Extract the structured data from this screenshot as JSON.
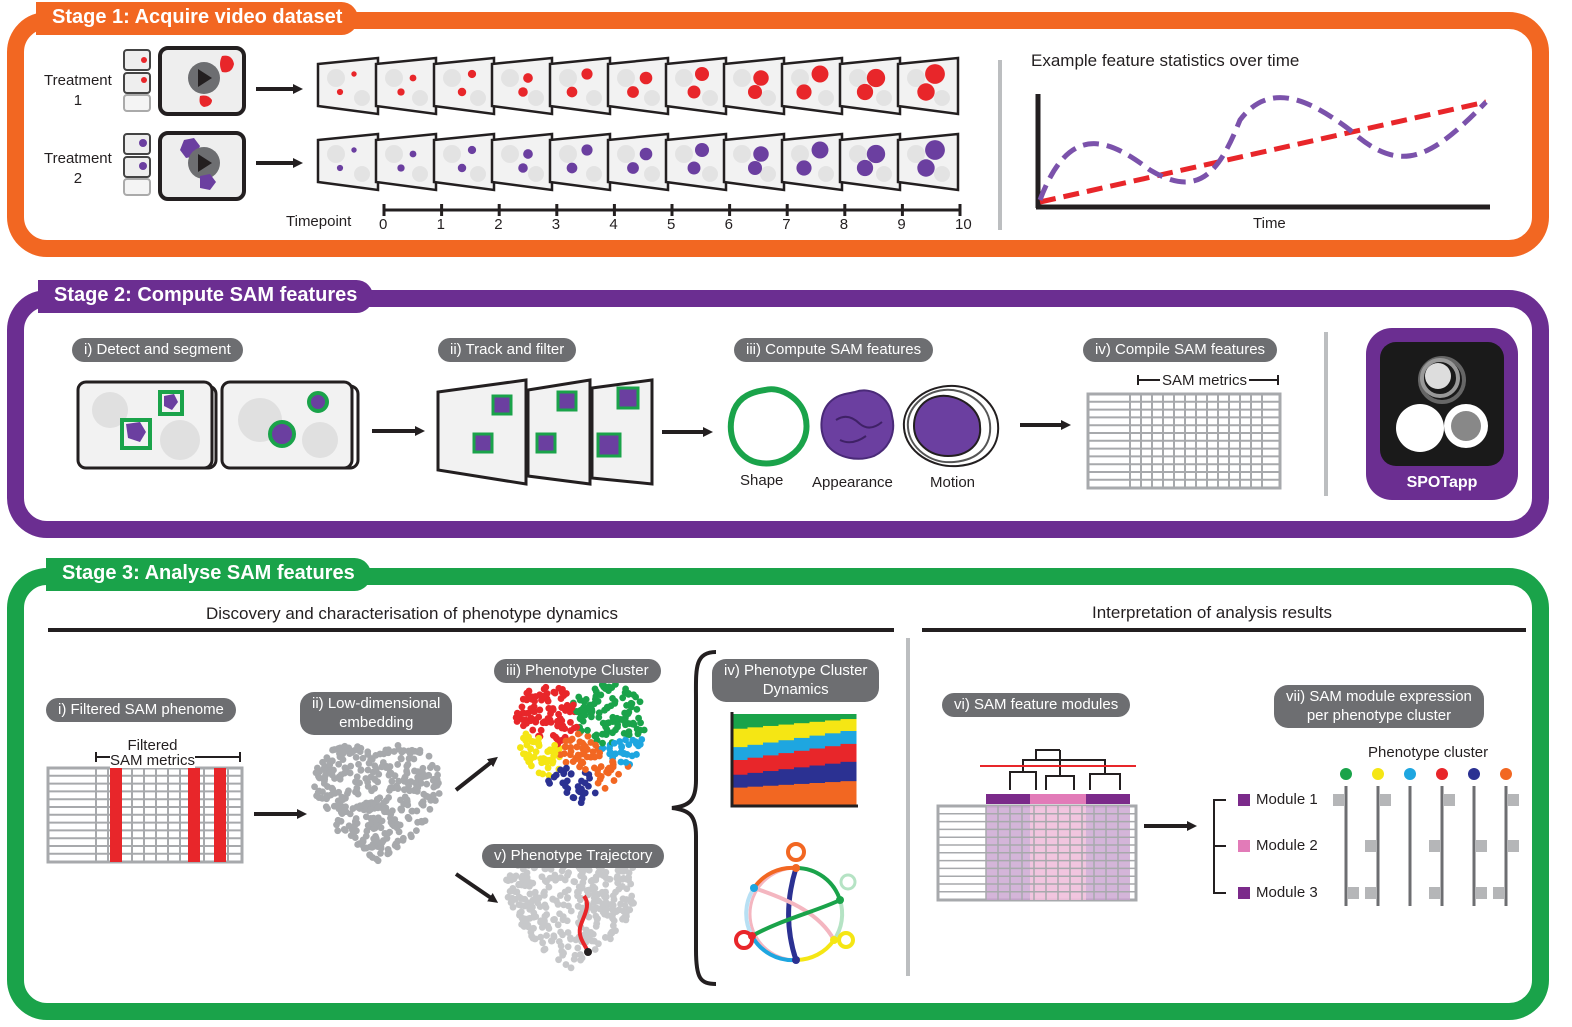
{
  "stage1": {
    "title": "Stage 1: Acquire video dataset",
    "treatment1": "Treatment\n1",
    "treatment2": "Treatment\n2",
    "timepoint_label": "Timepoint",
    "timepoints": [
      "0",
      "1",
      "2",
      "3",
      "4",
      "5",
      "6",
      "7",
      "8",
      "9",
      "10"
    ],
    "chart_title": "Example feature statistics over time",
    "chart_xlabel": "Time"
  },
  "stage2": {
    "title": "Stage 2: Compute SAM features",
    "steps": [
      "i) Detect and segment",
      "ii) Track and filter",
      "iii) Compute SAM features",
      "iv) Compile SAM features"
    ],
    "features": [
      "Shape",
      "Appearance",
      "Motion"
    ],
    "sam_metrics": "SAM metrics",
    "app_name": "SPOTapp"
  },
  "stage3": {
    "title": "Stage 3: Analyse SAM features",
    "left_header": "Discovery and characterisation of phenotype dynamics",
    "right_header": "Interpretation of analysis results",
    "step_i": "i) Filtered SAM phenome",
    "filtered_metrics": "Filtered\nSAM metrics",
    "step_ii": "ii) Low-dimensional\nembedding",
    "step_iii": "iii) Phenotype Cluster",
    "step_iv": "iv) Phenotype Cluster\nDynamics",
    "step_v": "v) Phenotype Trajectory",
    "step_vi": "vi) SAM feature modules",
    "step_vii": "vii) SAM module expression\nper phenotype cluster",
    "phenotype_cluster": "Phenotype cluster",
    "modules": [
      "Module 1",
      "Module 2",
      "Module 3"
    ]
  },
  "colors": {
    "stage1": "#f26722",
    "stage2": "#6b2e91",
    "stage3": "#1aa34a",
    "red": "#e8262a",
    "purple": "#6b3fa0",
    "gray_pill": "#6d6e71",
    "clusters": [
      "#1aa34a",
      "#f5e614",
      "#1ea6e0",
      "#e8262a",
      "#2b3192",
      "#f26722"
    ]
  }
}
